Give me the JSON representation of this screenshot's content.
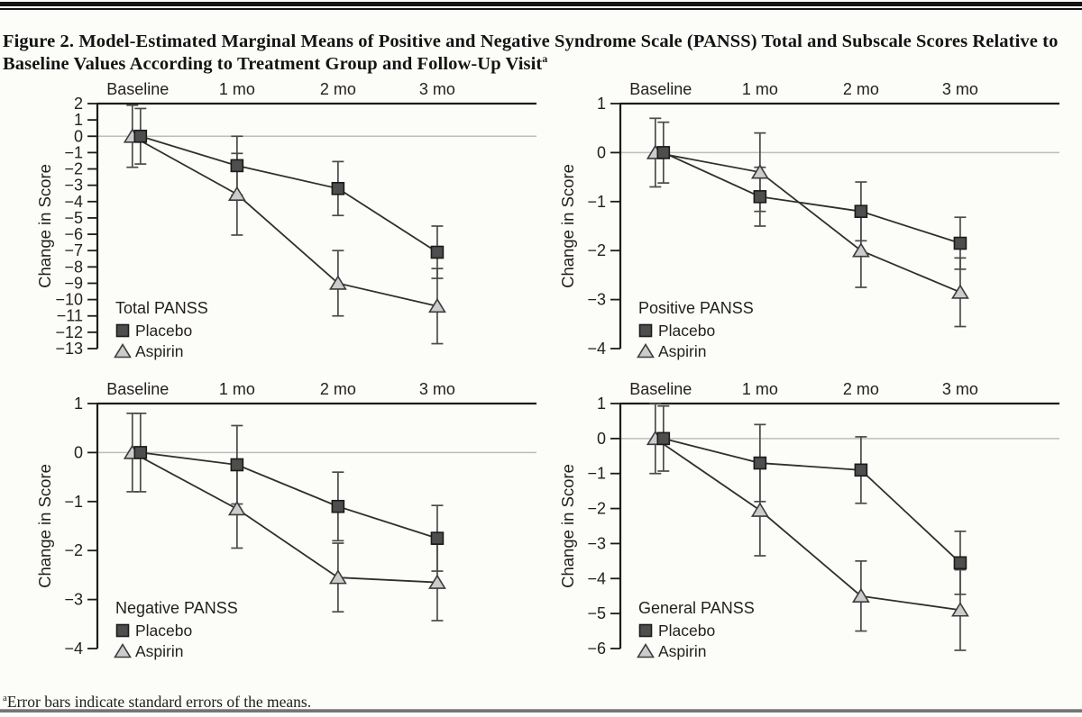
{
  "figure": {
    "title": "Figure 2. Model-Estimated Marginal Means of Positive and Negative Syndrome Scale (PANSS) Total and Subscale Scores Relative to Baseline Values According to Treatment Group and Follow-Up Visit",
    "title_marker": "a"
  },
  "footnote": {
    "marker": "a",
    "text": "Error bars indicate standard errors of the means."
  },
  "colors": {
    "background": "#fcfcf8",
    "axis": "#1c1c1c",
    "text": "#231f20",
    "series_line": "#2f2f2f",
    "error_bar": "#4a4a4a",
    "zero_line": "#bdbdbd",
    "placebo_fill": "#4e4e4e",
    "placebo_stroke": "#1a1a1a",
    "aspirin_fill": "#cccccc",
    "aspirin_stroke": "#3c3c3c"
  },
  "chart_data": [
    {
      "type": "line",
      "title": "Total PANSS",
      "ylabel": "Change in Score",
      "categories": [
        "Baseline",
        "1 mo",
        "2 mo",
        "3 mo"
      ],
      "ylim": [
        -13,
        2
      ],
      "yticks": [
        2,
        1,
        0,
        -1,
        -2,
        -3,
        -4,
        -5,
        -6,
        -7,
        -8,
        -9,
        -10,
        -11,
        -12,
        -13
      ],
      "error_bars": "standard error of the mean",
      "legend_position": "lower-left",
      "series": [
        {
          "name": "Placebo",
          "marker": "square",
          "values": [
            0,
            -1.8,
            -3.2,
            -7.1
          ],
          "stderr": [
            1.7,
            1.8,
            1.65,
            1.6
          ]
        },
        {
          "name": "Aspirin",
          "marker": "triangle",
          "values": [
            0,
            -3.55,
            -9.0,
            -10.4
          ],
          "stderr": [
            1.9,
            2.5,
            2.0,
            2.3
          ]
        }
      ]
    },
    {
      "type": "line",
      "title": "Positive PANSS",
      "ylabel": "Change in Score",
      "categories": [
        "Baseline",
        "1 mo",
        "2 mo",
        "3 mo"
      ],
      "ylim": [
        -4,
        1
      ],
      "yticks": [
        1,
        0,
        -1,
        -2,
        -3,
        -4
      ],
      "error_bars": "standard error of the mean",
      "legend_position": "lower-left",
      "series": [
        {
          "name": "Placebo",
          "marker": "square",
          "values": [
            0,
            -0.9,
            -1.2,
            -1.85
          ],
          "stderr": [
            0.62,
            0.6,
            0.6,
            0.53
          ]
        },
        {
          "name": "Aspirin",
          "marker": "triangle",
          "values": [
            0,
            -0.4,
            -2.0,
            -2.85
          ],
          "stderr": [
            0.7,
            0.8,
            0.75,
            0.7
          ]
        }
      ]
    },
    {
      "type": "line",
      "title": "Negative PANSS",
      "ylabel": "Change in Score",
      "categories": [
        "Baseline",
        "1 mo",
        "2 mo",
        "3 mo"
      ],
      "ylim": [
        -4,
        1
      ],
      "yticks": [
        1,
        0,
        -1,
        -2,
        -3,
        -4
      ],
      "error_bars": "standard error of the mean",
      "legend_position": "lower-left",
      "series": [
        {
          "name": "Placebo",
          "marker": "square",
          "values": [
            0,
            -0.25,
            -1.1,
            -1.75
          ],
          "stderr": [
            0.8,
            0.8,
            0.7,
            0.67
          ]
        },
        {
          "name": "Aspirin",
          "marker": "triangle",
          "values": [
            0,
            -1.15,
            -2.55,
            -2.65
          ],
          "stderr": [
            0.8,
            0.8,
            0.7,
            0.78
          ]
        }
      ]
    },
    {
      "type": "line",
      "title": "General PANSS",
      "ylabel": "Change in Score",
      "categories": [
        "Baseline",
        "1 mo",
        "2 mo",
        "3 mo"
      ],
      "ylim": [
        -6,
        1
      ],
      "yticks": [
        1,
        0,
        -1,
        -2,
        -3,
        -4,
        -5,
        -6
      ],
      "error_bars": "standard error of the mean",
      "legend_position": "lower-left",
      "series": [
        {
          "name": "Placebo",
          "marker": "square",
          "values": [
            0,
            -0.7,
            -0.9,
            -3.55
          ],
          "stderr": [
            0.93,
            1.1,
            0.95,
            0.9
          ]
        },
        {
          "name": "Aspirin",
          "marker": "triangle",
          "values": [
            0,
            -2.05,
            -4.5,
            -4.9
          ],
          "stderr": [
            1.0,
            1.3,
            1.0,
            1.15
          ]
        }
      ]
    }
  ]
}
